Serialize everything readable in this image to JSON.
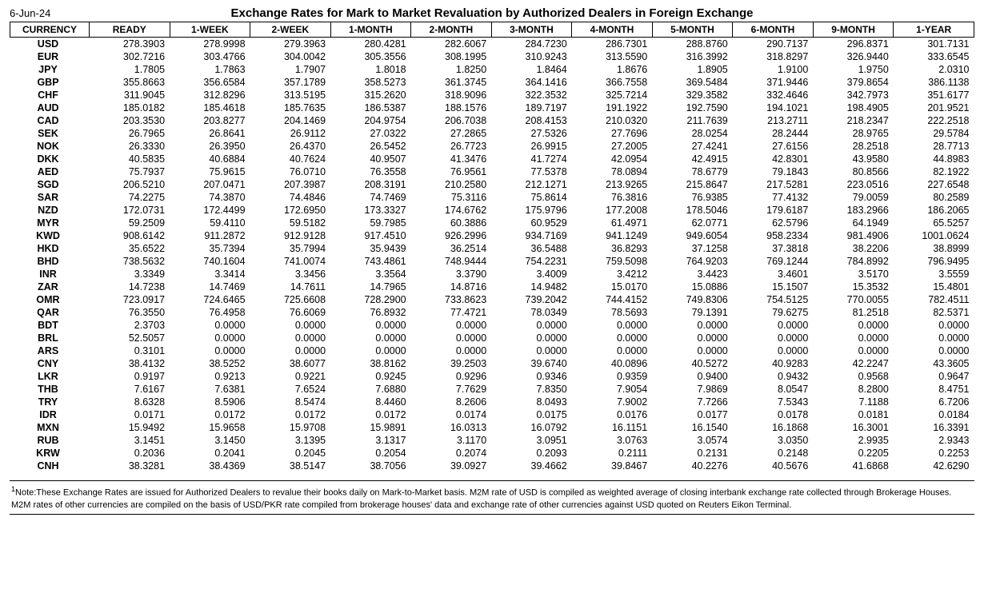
{
  "date": "6-Jun-24",
  "title": "Exchange Rates for Mark to Market Revaluation by Authorized Dealers in Foreign Exchange",
  "columns": [
    "CURRENCY",
    "READY",
    "1-WEEK",
    "2-WEEK",
    "1-MONTH",
    "2-MONTH",
    "3-MONTH",
    "4-MONTH",
    "5-MONTH",
    "6-MONTH",
    "9-MONTH",
    "1-YEAR"
  ],
  "rows": [
    {
      "c": "USD",
      "v": [
        "278.3903",
        "278.9998",
        "279.3963",
        "280.4281",
        "282.6067",
        "284.7230",
        "286.7301",
        "288.8760",
        "290.7137",
        "296.8371",
        "301.7131"
      ]
    },
    {
      "c": "EUR",
      "v": [
        "302.7216",
        "303.4766",
        "304.0042",
        "305.3556",
        "308.1995",
        "310.9243",
        "313.5590",
        "316.3992",
        "318.8297",
        "326.9440",
        "333.6545"
      ]
    },
    {
      "c": "JPY",
      "v": [
        "1.7805",
        "1.7863",
        "1.7907",
        "1.8018",
        "1.8250",
        "1.8464",
        "1.8676",
        "1.8905",
        "1.9100",
        "1.9750",
        "2.0310"
      ]
    },
    {
      "c": "GBP",
      "v": [
        "355.8663",
        "356.6584",
        "357.1789",
        "358.5273",
        "361.3745",
        "364.1416",
        "366.7558",
        "369.5484",
        "371.9446",
        "379.8654",
        "386.1138"
      ]
    },
    {
      "c": "CHF",
      "v": [
        "311.9045",
        "312.8296",
        "313.5195",
        "315.2620",
        "318.9096",
        "322.3532",
        "325.7214",
        "329.3582",
        "332.4646",
        "342.7973",
        "351.6177"
      ]
    },
    {
      "c": "AUD",
      "v": [
        "185.0182",
        "185.4618",
        "185.7635",
        "186.5387",
        "188.1576",
        "189.7197",
        "191.1922",
        "192.7590",
        "194.1021",
        "198.4905",
        "201.9521"
      ]
    },
    {
      "c": "CAD",
      "v": [
        "203.3530",
        "203.8277",
        "204.1469",
        "204.9754",
        "206.7038",
        "208.4153",
        "210.0320",
        "211.7639",
        "213.2711",
        "218.2347",
        "222.2518"
      ]
    },
    {
      "c": "SEK",
      "v": [
        "26.7965",
        "26.8641",
        "26.9112",
        "27.0322",
        "27.2865",
        "27.5326",
        "27.7696",
        "28.0254",
        "28.2444",
        "28.9765",
        "29.5784"
      ]
    },
    {
      "c": "NOK",
      "v": [
        "26.3330",
        "26.3950",
        "26.4370",
        "26.5452",
        "26.7723",
        "26.9915",
        "27.2005",
        "27.4241",
        "27.6156",
        "28.2518",
        "28.7713"
      ]
    },
    {
      "c": "DKK",
      "v": [
        "40.5835",
        "40.6884",
        "40.7624",
        "40.9507",
        "41.3476",
        "41.7274",
        "42.0954",
        "42.4915",
        "42.8301",
        "43.9580",
        "44.8983"
      ]
    },
    {
      "c": "AED",
      "v": [
        "75.7937",
        "75.9615",
        "76.0710",
        "76.3558",
        "76.9561",
        "77.5378",
        "78.0894",
        "78.6779",
        "79.1843",
        "80.8566",
        "82.1922"
      ]
    },
    {
      "c": "SGD",
      "v": [
        "206.5210",
        "207.0471",
        "207.3987",
        "208.3191",
        "210.2580",
        "212.1271",
        "213.9265",
        "215.8647",
        "217.5281",
        "223.0516",
        "227.6548"
      ]
    },
    {
      "c": "SAR",
      "v": [
        "74.2275",
        "74.3870",
        "74.4846",
        "74.7469",
        "75.3116",
        "75.8614",
        "76.3816",
        "76.9385",
        "77.4132",
        "79.0059",
        "80.2589"
      ]
    },
    {
      "c": "NZD",
      "v": [
        "172.0731",
        "172.4499",
        "172.6950",
        "173.3327",
        "174.6762",
        "175.9796",
        "177.2008",
        "178.5046",
        "179.6187",
        "183.2966",
        "186.2065"
      ]
    },
    {
      "c": "MYR",
      "v": [
        "59.2509",
        "59.4110",
        "59.5182",
        "59.7985",
        "60.3886",
        "60.9529",
        "61.4971",
        "62.0771",
        "62.5796",
        "64.1949",
        "65.5257"
      ]
    },
    {
      "c": "KWD",
      "v": [
        "908.6142",
        "911.2872",
        "912.9128",
        "917.4510",
        "926.2996",
        "934.7169",
        "941.1249",
        "949.6054",
        "958.2334",
        "981.4906",
        "1001.0624"
      ]
    },
    {
      "c": "HKD",
      "v": [
        "35.6522",
        "35.7394",
        "35.7994",
        "35.9439",
        "36.2514",
        "36.5488",
        "36.8293",
        "37.1258",
        "37.3818",
        "38.2206",
        "38.8999"
      ]
    },
    {
      "c": "BHD",
      "v": [
        "738.5632",
        "740.1604",
        "741.0074",
        "743.4861",
        "748.9444",
        "754.2231",
        "759.5098",
        "764.9203",
        "769.1244",
        "784.8992",
        "796.9495"
      ]
    },
    {
      "c": "INR",
      "v": [
        "3.3349",
        "3.3414",
        "3.3456",
        "3.3564",
        "3.3790",
        "3.4009",
        "3.4212",
        "3.4423",
        "3.4601",
        "3.5170",
        "3.5559"
      ]
    },
    {
      "c": "ZAR",
      "v": [
        "14.7238",
        "14.7469",
        "14.7611",
        "14.7965",
        "14.8716",
        "14.9482",
        "15.0170",
        "15.0886",
        "15.1507",
        "15.3532",
        "15.4801"
      ]
    },
    {
      "c": "OMR",
      "v": [
        "723.0917",
        "724.6465",
        "725.6608",
        "728.2900",
        "733.8623",
        "739.2042",
        "744.4152",
        "749.8306",
        "754.5125",
        "770.0055",
        "782.4511"
      ]
    },
    {
      "c": "QAR",
      "v": [
        "76.3550",
        "76.4958",
        "76.6069",
        "76.8932",
        "77.4721",
        "78.0349",
        "78.5693",
        "79.1391",
        "79.6275",
        "81.2518",
        "82.5371"
      ]
    },
    {
      "c": "BDT",
      "v": [
        "2.3703",
        "0.0000",
        "0.0000",
        "0.0000",
        "0.0000",
        "0.0000",
        "0.0000",
        "0.0000",
        "0.0000",
        "0.0000",
        "0.0000"
      ]
    },
    {
      "c": "BRL",
      "v": [
        "52.5057",
        "0.0000",
        "0.0000",
        "0.0000",
        "0.0000",
        "0.0000",
        "0.0000",
        "0.0000",
        "0.0000",
        "0.0000",
        "0.0000"
      ]
    },
    {
      "c": "ARS",
      "v": [
        "0.3101",
        "0.0000",
        "0.0000",
        "0.0000",
        "0.0000",
        "0.0000",
        "0.0000",
        "0.0000",
        "0.0000",
        "0.0000",
        "0.0000"
      ]
    },
    {
      "c": "CNY",
      "v": [
        "38.4132",
        "38.5252",
        "38.6077",
        "38.8162",
        "39.2503",
        "39.6740",
        "40.0896",
        "40.5272",
        "40.9283",
        "42.2247",
        "43.3605"
      ]
    },
    {
      "c": "LKR",
      "v": [
        "0.9197",
        "0.9213",
        "0.9221",
        "0.9245",
        "0.9296",
        "0.9346",
        "0.9359",
        "0.9400",
        "0.9432",
        "0.9568",
        "0.9647"
      ]
    },
    {
      "c": "THB",
      "v": [
        "7.6167",
        "7.6381",
        "7.6524",
        "7.6880",
        "7.7629",
        "7.8350",
        "7.9054",
        "7.9869",
        "8.0547",
        "8.2800",
        "8.4751"
      ]
    },
    {
      "c": "TRY",
      "v": [
        "8.6328",
        "8.5906",
        "8.5474",
        "8.4460",
        "8.2606",
        "8.0493",
        "7.9002",
        "7.7266",
        "7.5343",
        "7.1188",
        "6.7206"
      ]
    },
    {
      "c": "IDR",
      "v": [
        "0.0171",
        "0.0172",
        "0.0172",
        "0.0172",
        "0.0174",
        "0.0175",
        "0.0176",
        "0.0177",
        "0.0178",
        "0.0181",
        "0.0184"
      ]
    },
    {
      "c": "MXN",
      "v": [
        "15.9492",
        "15.9658",
        "15.9708",
        "15.9891",
        "16.0313",
        "16.0792",
        "16.1151",
        "16.1540",
        "16.1868",
        "16.3001",
        "16.3391"
      ]
    },
    {
      "c": "RUB",
      "v": [
        "3.1451",
        "3.1450",
        "3.1395",
        "3.1317",
        "3.1170",
        "3.0951",
        "3.0763",
        "3.0574",
        "3.0350",
        "2.9935",
        "2.9343"
      ]
    },
    {
      "c": "KRW",
      "v": [
        "0.2036",
        "0.2041",
        "0.2045",
        "0.2054",
        "0.2074",
        "0.2093",
        "0.2111",
        "0.2131",
        "0.2148",
        "0.2205",
        "0.2253"
      ]
    },
    {
      "c": "CNH",
      "v": [
        "38.3281",
        "38.4369",
        "38.5147",
        "38.7056",
        "39.0927",
        "39.4662",
        "39.8467",
        "40.2276",
        "40.5676",
        "41.6868",
        "42.6290"
      ]
    }
  ],
  "footnote": "Note:These Exchange Rates are issued for Authorized Dealers to revalue their books daily on Mark-to-Market basis. M2M rate of USD is compiled as weighted average of closing interbank exchange rate collected through Brokerage Houses. M2M rates of other currencies are compiled on the basis of USD/PKR rate compiled from brokerage houses' data and exchange rate of other currencies against USD quoted on Reuters Eikon Terminal."
}
